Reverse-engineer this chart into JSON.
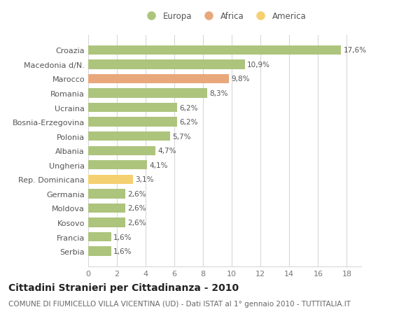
{
  "categories": [
    "Serbia",
    "Francia",
    "Kosovo",
    "Moldova",
    "Germania",
    "Rep. Dominicana",
    "Ungheria",
    "Albania",
    "Polonia",
    "Bosnia-Erzegovina",
    "Ucraina",
    "Romania",
    "Marocco",
    "Macedonia d/N.",
    "Croazia"
  ],
  "values": [
    1.6,
    1.6,
    2.6,
    2.6,
    2.6,
    3.1,
    4.1,
    4.7,
    5.7,
    6.2,
    6.2,
    8.3,
    9.8,
    10.9,
    17.6
  ],
  "labels": [
    "1,6%",
    "1,6%",
    "2,6%",
    "2,6%",
    "2,6%",
    "3,1%",
    "4,1%",
    "4,7%",
    "5,7%",
    "6,2%",
    "6,2%",
    "8,3%",
    "9,8%",
    "10,9%",
    "17,6%"
  ],
  "continents": [
    "Europa",
    "Europa",
    "Europa",
    "Europa",
    "Europa",
    "America",
    "Europa",
    "Europa",
    "Europa",
    "Europa",
    "Europa",
    "Europa",
    "Africa",
    "Europa",
    "Europa"
  ],
  "colors": {
    "Europa": "#adc47d",
    "Africa": "#e8a87c",
    "America": "#f5d070"
  },
  "legend_entries": [
    "Europa",
    "Africa",
    "America"
  ],
  "xlim": [
    0,
    19
  ],
  "xticks": [
    0,
    2,
    4,
    6,
    8,
    10,
    12,
    14,
    16,
    18
  ],
  "title": "Cittadini Stranieri per Cittadinanza - 2010",
  "subtitle": "COMUNE DI FIUMICELLO VILLA VICENTINA (UD) - Dati ISTAT al 1° gennaio 2010 - TUTTITALIA.IT",
  "bg_color": "#ffffff",
  "grid_color": "#d8d8d8",
  "bar_height": 0.65,
  "label_fontsize": 7.5,
  "ytick_fontsize": 8,
  "xtick_fontsize": 8,
  "title_fontsize": 10,
  "subtitle_fontsize": 7.5,
  "legend_fontsize": 8.5
}
